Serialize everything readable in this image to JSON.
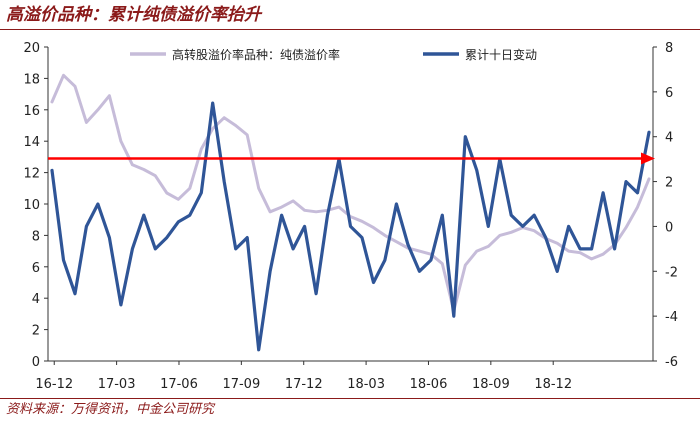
{
  "title": "高溢价品种：累计纯债溢价率抬升",
  "source": "资料来源：万得资讯，中金公司研究",
  "chart_data": {
    "type": "line",
    "title": "高溢价品种：累计纯债溢价率抬升",
    "x_labels": [
      "16-12",
      "17-03",
      "17-06",
      "17-09",
      "17-12",
      "18-03",
      "18-06",
      "18-09",
      "18-12"
    ],
    "x": [
      "16-12",
      "16-12",
      "17-01",
      "17-01",
      "17-02",
      "17-02",
      "17-03",
      "17-03",
      "17-04",
      "17-04",
      "17-05",
      "17-05",
      "17-06",
      "17-06",
      "17-07",
      "17-07",
      "17-08",
      "17-08",
      "17-09",
      "17-09",
      "17-10",
      "17-10",
      "17-11",
      "17-11",
      "17-12",
      "17-12",
      "18-01",
      "18-01",
      "18-02",
      "18-02",
      "18-03",
      "18-03",
      "18-04",
      "18-04",
      "18-05",
      "18-05",
      "18-06",
      "18-06",
      "18-07",
      "18-07",
      "18-08",
      "18-08",
      "18-09",
      "18-09",
      "18-10",
      "18-10",
      "18-11",
      "18-11",
      "18-12",
      "18-12",
      "19-01",
      "19-01",
      "19-02"
    ],
    "y_left": {
      "min": 0,
      "max": 20,
      "ticks": [
        0,
        2,
        4,
        6,
        8,
        10,
        12,
        14,
        16,
        18,
        20
      ]
    },
    "y_right": {
      "min": -6,
      "max": 8,
      "ticks": [
        -6,
        -4,
        -2,
        0,
        2,
        4,
        6,
        8
      ]
    },
    "series": [
      {
        "name": "高转股溢价率品种：纯债溢价率",
        "axis": "left",
        "color": "#c6bcd9",
        "values": [
          16.5,
          18.2,
          17.5,
          15.2,
          16.0,
          16.9,
          14.0,
          12.5,
          12.2,
          11.8,
          10.7,
          10.3,
          11.0,
          13.5,
          14.8,
          15.5,
          15.0,
          14.4,
          11.0,
          9.5,
          9.8,
          10.2,
          9.6,
          9.5,
          9.6,
          9.8,
          9.2,
          8.9,
          8.5,
          8.0,
          7.6,
          7.2,
          7.0,
          6.8,
          6.2,
          3.2,
          6.1,
          7.0,
          7.3,
          8.0,
          8.2,
          8.5,
          8.3,
          7.8,
          7.5,
          7.0,
          6.9,
          6.5,
          6.8,
          7.4,
          8.5,
          9.8,
          11.6
        ]
      },
      {
        "name": "累计十日变动",
        "axis": "right",
        "color": "#2f5597",
        "values": [
          2.5,
          -1.5,
          -3.0,
          0.0,
          1.0,
          -0.5,
          -3.5,
          -1.0,
          0.5,
          -1.0,
          -0.5,
          0.2,
          0.5,
          1.5,
          5.5,
          2.0,
          -1.0,
          -0.5,
          -5.5,
          -2.0,
          0.5,
          -1.0,
          0.0,
          -3.0,
          0.5,
          3.0,
          0.0,
          -0.5,
          -2.5,
          -1.5,
          1.0,
          -0.8,
          -2.0,
          -1.5,
          0.5,
          -4.0,
          4.0,
          2.5,
          0.0,
          3.0,
          0.5,
          0.0,
          0.5,
          -0.5,
          -2.0,
          0.0,
          -1.0,
          -1.0,
          1.5,
          -1.0,
          2.0,
          1.5,
          4.2
        ]
      }
    ],
    "reference_line": {
      "axis": "left",
      "value": 12.9,
      "color": "#ff0000",
      "arrow": true
    },
    "legend": "top",
    "grid": false
  }
}
